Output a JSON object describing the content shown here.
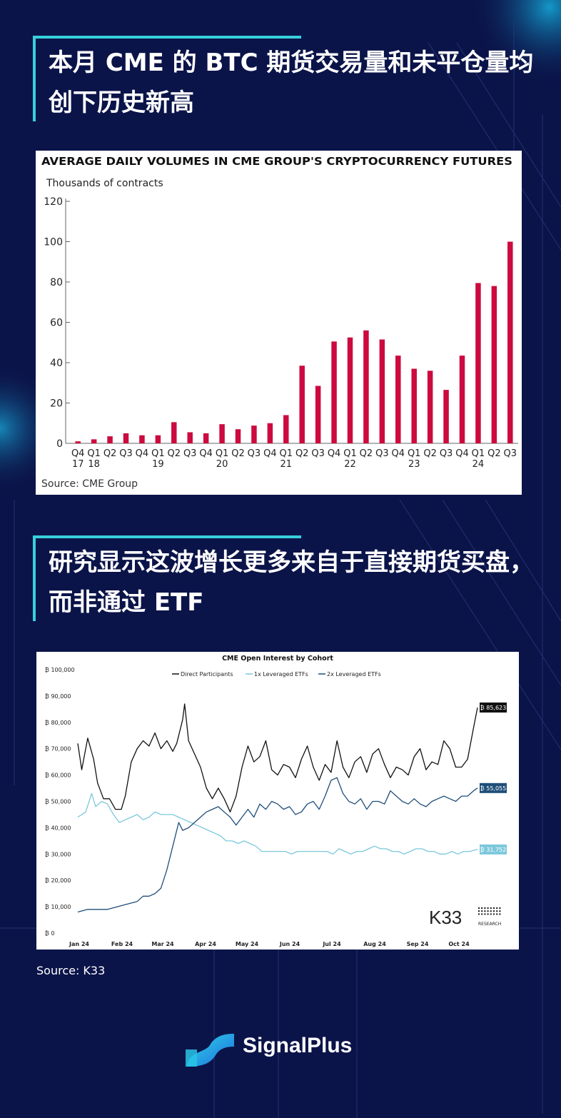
{
  "heading1": "本月 CME 的 BTC 期货交易量和未平仓量均创下历史新高",
  "heading2": "研究显示这波增长更多来自于直接期货买盘，而非通过 ETF",
  "source2": "Source: K33",
  "brand": "SignalPlus",
  "colors": {
    "background": "#0b1449",
    "accent": "#37d0dc",
    "bar": "#cc0a3f",
    "direct": "#111111",
    "etf1x": "#7cc8dc",
    "etf2x": "#1f4e79"
  },
  "chart_data": [
    {
      "type": "bar",
      "title": "AVERAGE DAILY VOLUMES IN CME GROUP'S CRYPTOCURRENCY FUTURES",
      "ylabel": "Thousands of contracts",
      "source": "Source: CME Group",
      "ylim": [
        0,
        120
      ],
      "yticks": [
        0,
        20,
        40,
        60,
        80,
        100,
        120
      ],
      "categories": [
        "Q4",
        "Q1",
        "Q2",
        "Q3",
        "Q4",
        "Q1",
        "Q2",
        "Q3",
        "Q4",
        "Q1",
        "Q2",
        "Q3",
        "Q4",
        "Q1",
        "Q2",
        "Q3",
        "Q4",
        "Q1",
        "Q2",
        "Q3",
        "Q4",
        "Q1",
        "Q2",
        "Q3",
        "Q4",
        "Q1",
        "Q2",
        "Q3"
      ],
      "year_labels": [
        "17",
        "18",
        "",
        "",
        "",
        "19",
        "",
        "",
        "",
        "20",
        "",
        "",
        "",
        "21",
        "",
        "",
        "",
        "22",
        "",
        "",
        "",
        "23",
        "",
        "",
        "",
        "24",
        "",
        ""
      ],
      "values": [
        1,
        2,
        3.5,
        5,
        4,
        4,
        10.5,
        5.5,
        5,
        9.5,
        7,
        8.8,
        10,
        14,
        38.5,
        28.5,
        50.5,
        52.5,
        56,
        51.5,
        43.5,
        37,
        36,
        26.5,
        43.5,
        79.5,
        78,
        100
      ]
    },
    {
      "type": "line",
      "title": "CME Open Interest by Cohort",
      "ylim": [
        0,
        100000
      ],
      "yticks": [
        "₿ 0",
        "₿ 10,000",
        "₿ 20,000",
        "₿ 30,000",
        "₿ 40,000",
        "₿ 50,000",
        "₿ 60,000",
        "₿ 70,000",
        "₿ 80,000",
        "₿ 90,000",
        "₿ 100,000"
      ],
      "xticks": [
        "Jan 24",
        "Feb 24",
        "Mar 24",
        "Apr 24",
        "May 24",
        "Jun 24",
        "Jul 24",
        "Aug 24",
        "Sep 24",
        "Oct 24"
      ],
      "legend_position": "top",
      "brand": "K33",
      "brand_sub": "RESEARCH",
      "series": [
        {
          "name": "Direct Participants",
          "last_label": "₿ 85,623",
          "values": [
            [
              0,
              72000
            ],
            [
              2,
              62000
            ],
            [
              5,
              74000
            ],
            [
              8,
              66000
            ],
            [
              10,
              57000
            ],
            [
              13,
              51000
            ],
            [
              16,
              51000
            ],
            [
              19,
              47000
            ],
            [
              22,
              47000
            ],
            [
              24,
              52000
            ],
            [
              27,
              65000
            ],
            [
              30,
              70000
            ],
            [
              33,
              73000
            ],
            [
              36,
              71000
            ],
            [
              39,
              76000
            ],
            [
              42,
              70000
            ],
            [
              45,
              73000
            ],
            [
              48,
              69000
            ],
            [
              50,
              72000
            ],
            [
              53,
              81000
            ],
            [
              54,
              87000
            ],
            [
              56,
              73000
            ],
            [
              59,
              68000
            ],
            [
              62,
              63000
            ],
            [
              65,
              55000
            ],
            [
              68,
              51000
            ],
            [
              71,
              55000
            ],
            [
              74,
              51000
            ],
            [
              77,
              46000
            ],
            [
              80,
              52000
            ],
            [
              83,
              63000
            ],
            [
              86,
              71000
            ],
            [
              89,
              65000
            ],
            [
              92,
              67000
            ],
            [
              95,
              73000
            ],
            [
              98,
              62000
            ],
            [
              101,
              60000
            ],
            [
              104,
              64000
            ],
            [
              107,
              63000
            ],
            [
              110,
              59000
            ],
            [
              113,
              66000
            ],
            [
              116,
              71000
            ],
            [
              119,
              63000
            ],
            [
              122,
              58000
            ],
            [
              125,
              64000
            ],
            [
              128,
              61000
            ],
            [
              131,
              73000
            ],
            [
              134,
              63000
            ],
            [
              137,
              59000
            ],
            [
              140,
              65000
            ],
            [
              143,
              67000
            ],
            [
              146,
              61000
            ],
            [
              149,
              68000
            ],
            [
              152,
              70000
            ],
            [
              155,
              64000
            ],
            [
              158,
              59000
            ],
            [
              161,
              63000
            ],
            [
              164,
              62000
            ],
            [
              167,
              60000
            ],
            [
              170,
              67000
            ],
            [
              173,
              70000
            ],
            [
              176,
              62000
            ],
            [
              179,
              65000
            ],
            [
              182,
              64000
            ],
            [
              185,
              73000
            ],
            [
              188,
              70000
            ],
            [
              191,
              63000
            ],
            [
              194,
              63000
            ],
            [
              197,
              66000
            ],
            [
              200,
              78000
            ],
            [
              202,
              85623
            ]
          ]
        },
        {
          "name": "1x Leveraged ETFs",
          "last_label": "₿ 31,752",
          "values": [
            [
              0,
              44000
            ],
            [
              4,
              46000
            ],
            [
              7,
              53000
            ],
            [
              9,
              48000
            ],
            [
              12,
              50000
            ],
            [
              15,
              49000
            ],
            [
              18,
              45000
            ],
            [
              21,
              42000
            ],
            [
              24,
              43000
            ],
            [
              27,
              44000
            ],
            [
              30,
              45000
            ],
            [
              33,
              43000
            ],
            [
              36,
              44000
            ],
            [
              39,
              46000
            ],
            [
              42,
              45000
            ],
            [
              45,
              45000
            ],
            [
              48,
              45000
            ],
            [
              51,
              44000
            ],
            [
              54,
              43000
            ],
            [
              57,
              42000
            ],
            [
              60,
              41000
            ],
            [
              63,
              40000
            ],
            [
              66,
              39000
            ],
            [
              69,
              38000
            ],
            [
              72,
              37000
            ],
            [
              75,
              35000
            ],
            [
              78,
              35000
            ],
            [
              81,
              34000
            ],
            [
              84,
              35000
            ],
            [
              87,
              34000
            ],
            [
              90,
              33000
            ],
            [
              93,
              31000
            ],
            [
              96,
              31000
            ],
            [
              99,
              31000
            ],
            [
              102,
              31000
            ],
            [
              105,
              31000
            ],
            [
              108,
              30000
            ],
            [
              111,
              31000
            ],
            [
              114,
              31000
            ],
            [
              117,
              31000
            ],
            [
              120,
              31000
            ],
            [
              123,
              31000
            ],
            [
              126,
              31000
            ],
            [
              129,
              30000
            ],
            [
              132,
              32000
            ],
            [
              135,
              31000
            ],
            [
              138,
              30000
            ],
            [
              141,
              31000
            ],
            [
              144,
              31000
            ],
            [
              147,
              32000
            ],
            [
              150,
              33000
            ],
            [
              153,
              32000
            ],
            [
              156,
              32000
            ],
            [
              159,
              31000
            ],
            [
              162,
              31000
            ],
            [
              165,
              30000
            ],
            [
              168,
              31000
            ],
            [
              171,
              32000
            ],
            [
              174,
              32000
            ],
            [
              177,
              31000
            ],
            [
              180,
              31000
            ],
            [
              183,
              30000
            ],
            [
              186,
              30000
            ],
            [
              189,
              31000
            ],
            [
              192,
              30000
            ],
            [
              195,
              31000
            ],
            [
              198,
              31000
            ],
            [
              202,
              31752
            ]
          ]
        },
        {
          "name": "2x Leveraged ETFs",
          "last_label": "₿ 55,055",
          "values": [
            [
              0,
              8000
            ],
            [
              5,
              9000
            ],
            [
              10,
              9000
            ],
            [
              15,
              9000
            ],
            [
              20,
              10000
            ],
            [
              25,
              11000
            ],
            [
              30,
              12000
            ],
            [
              33,
              14000
            ],
            [
              36,
              14000
            ],
            [
              39,
              15000
            ],
            [
              42,
              17000
            ],
            [
              45,
              24000
            ],
            [
              48,
              33000
            ],
            [
              51,
              42000
            ],
            [
              53,
              39000
            ],
            [
              56,
              40000
            ],
            [
              59,
              42000
            ],
            [
              62,
              44000
            ],
            [
              65,
              46000
            ],
            [
              68,
              47000
            ],
            [
              71,
              48000
            ],
            [
              74,
              46000
            ],
            [
              77,
              44000
            ],
            [
              80,
              41000
            ],
            [
              83,
              44000
            ],
            [
              86,
              47000
            ],
            [
              89,
              44000
            ],
            [
              92,
              49000
            ],
            [
              95,
              47000
            ],
            [
              98,
              50000
            ],
            [
              101,
              49000
            ],
            [
              104,
              47000
            ],
            [
              107,
              48000
            ],
            [
              110,
              45000
            ],
            [
              113,
              46000
            ],
            [
              116,
              49000
            ],
            [
              119,
              50000
            ],
            [
              122,
              47000
            ],
            [
              125,
              52000
            ],
            [
              128,
              58000
            ],
            [
              131,
              59000
            ],
            [
              134,
              53000
            ],
            [
              137,
              50000
            ],
            [
              140,
              49000
            ],
            [
              143,
              51000
            ],
            [
              146,
              47000
            ],
            [
              149,
              50000
            ],
            [
              152,
              50000
            ],
            [
              155,
              49000
            ],
            [
              158,
              54000
            ],
            [
              161,
              52000
            ],
            [
              164,
              50000
            ],
            [
              167,
              49000
            ],
            [
              170,
              51000
            ],
            [
              173,
              49000
            ],
            [
              176,
              48000
            ],
            [
              179,
              50000
            ],
            [
              182,
              51000
            ],
            [
              185,
              52000
            ],
            [
              188,
              51000
            ],
            [
              191,
              50000
            ],
            [
              194,
              52000
            ],
            [
              197,
              52000
            ],
            [
              200,
              54000
            ],
            [
              202,
              55055
            ]
          ]
        }
      ]
    }
  ]
}
